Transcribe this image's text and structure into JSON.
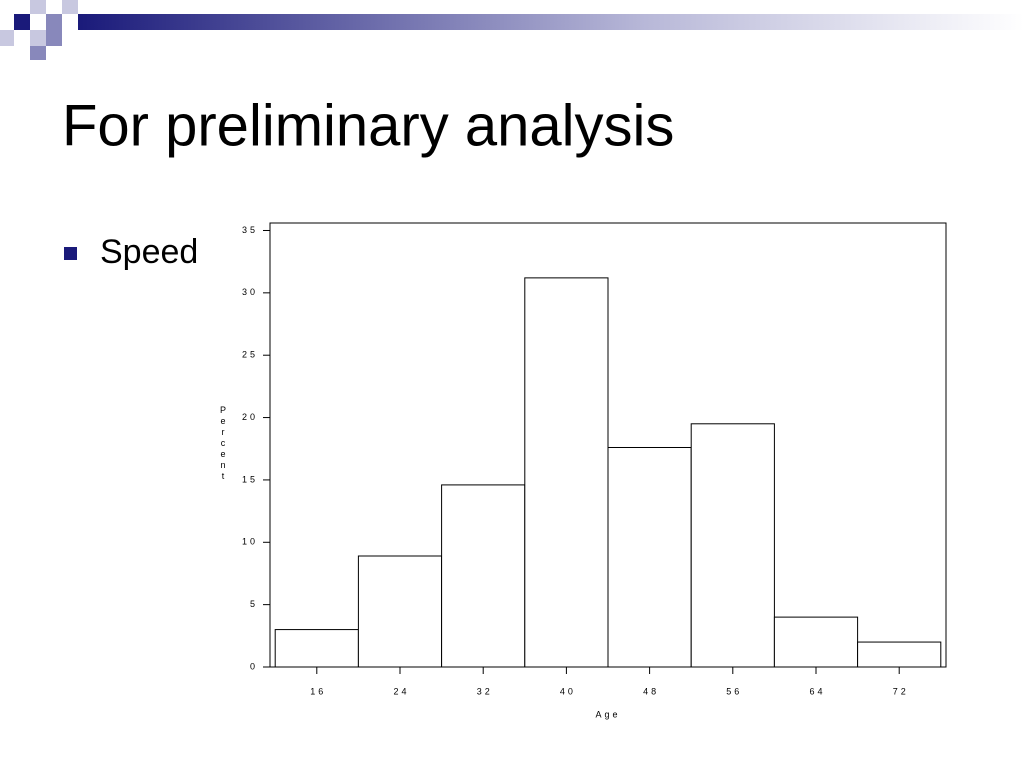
{
  "slide": {
    "title": "For preliminary analysis",
    "bullet": "Speed"
  },
  "chart_data": {
    "type": "histogram",
    "x_label": "Age",
    "y_label": "Percent",
    "bins": [
      12,
      20,
      28,
      36,
      44,
      52,
      60,
      68,
      76
    ],
    "values": [
      3.0,
      8.9,
      14.6,
      31.2,
      17.6,
      19.5,
      4.0,
      2.0
    ],
    "xlim": [
      11.5,
      76.5
    ],
    "xticks": [
      16,
      24,
      32,
      40,
      48,
      56,
      64,
      72
    ],
    "ylim": [
      0,
      35.6
    ],
    "yticks": [
      0,
      5,
      10,
      15,
      20,
      25,
      30,
      35
    ],
    "color": "#ffffff"
  }
}
